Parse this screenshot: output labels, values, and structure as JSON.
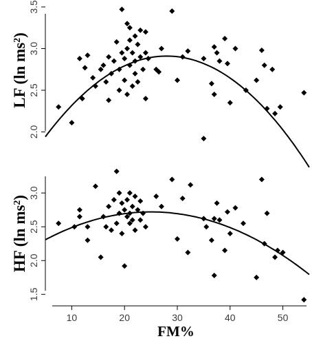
{
  "figure": {
    "xlabel": "FM%"
  },
  "chart_data": [
    {
      "type": "scatter",
      "ylabel": "LF (ln ms²)",
      "ylabel_main": "LF (ln ms",
      "ylabel_sup": "2",
      "ylabel_close": ")",
      "xlim": [
        5,
        55
      ],
      "ylim": [
        1.88,
        3.55
      ],
      "yticks": [
        2.0,
        2.5,
        3.0,
        3.5
      ],
      "ytick_labels": [
        "2.0",
        "2.5",
        "3.0",
        "3.5"
      ],
      "grid": false,
      "fit": {
        "type": "quadratic",
        "peak_x": 28,
        "peak_y": 2.91,
        "a": -0.00183
      },
      "points": [
        {
          "x": 7.5,
          "y": 2.3
        },
        {
          "x": 10,
          "y": 2.11
        },
        {
          "x": 11.5,
          "y": 2.88
        },
        {
          "x": 12,
          "y": 2.4
        },
        {
          "x": 12.5,
          "y": 2.77
        },
        {
          "x": 13,
          "y": 2.92
        },
        {
          "x": 14,
          "y": 2.65
        },
        {
          "x": 14.5,
          "y": 2.55
        },
        {
          "x": 15.5,
          "y": 2.75
        },
        {
          "x": 16,
          "y": 2.8
        },
        {
          "x": 16.5,
          "y": 2.6
        },
        {
          "x": 17,
          "y": 2.38
        },
        {
          "x": 17,
          "y": 2.9
        },
        {
          "x": 17.5,
          "y": 2.7
        },
        {
          "x": 18,
          "y": 2.85
        },
        {
          "x": 18.5,
          "y": 3.08
        },
        {
          "x": 19,
          "y": 2.5
        },
        {
          "x": 19,
          "y": 2.75
        },
        {
          "x": 19.5,
          "y": 2.95
        },
        {
          "x": 19.5,
          "y": 3.47
        },
        {
          "x": 20,
          "y": 2.62
        },
        {
          "x": 20,
          "y": 2.88
        },
        {
          "x": 20.5,
          "y": 2.45
        },
        {
          "x": 20.5,
          "y": 3.3
        },
        {
          "x": 20.5,
          "y": 3.0
        },
        {
          "x": 21,
          "y": 3.25
        },
        {
          "x": 21,
          "y": 3.1
        },
        {
          "x": 21,
          "y": 2.8
        },
        {
          "x": 21.5,
          "y": 2.55
        },
        {
          "x": 21.5,
          "y": 2.95
        },
        {
          "x": 22,
          "y": 3.15
        },
        {
          "x": 22,
          "y": 2.7
        },
        {
          "x": 22,
          "y": 2.85
        },
        {
          "x": 22.5,
          "y": 2.6
        },
        {
          "x": 22.5,
          "y": 3.05
        },
        {
          "x": 23,
          "y": 2.9
        },
        {
          "x": 23,
          "y": 3.22
        },
        {
          "x": 23.5,
          "y": 2.75
        },
        {
          "x": 24,
          "y": 2.95
        },
        {
          "x": 24,
          "y": 3.2
        },
        {
          "x": 24,
          "y": 2.4
        },
        {
          "x": 24.5,
          "y": 2.88
        },
        {
          "x": 26,
          "y": 2.75
        },
        {
          "x": 26.5,
          "y": 2.72
        },
        {
          "x": 27,
          "y": 3.0
        },
        {
          "x": 29,
          "y": 3.45
        },
        {
          "x": 30,
          "y": 2.62
        },
        {
          "x": 31,
          "y": 2.9
        },
        {
          "x": 32,
          "y": 2.97
        },
        {
          "x": 35,
          "y": 2.88
        },
        {
          "x": 35,
          "y": 1.92
        },
        {
          "x": 36.5,
          "y": 2.58
        },
        {
          "x": 37,
          "y": 2.45
        },
        {
          "x": 37,
          "y": 3.02
        },
        {
          "x": 37.5,
          "y": 2.95
        },
        {
          "x": 38,
          "y": 2.85
        },
        {
          "x": 39,
          "y": 3.12
        },
        {
          "x": 39.5,
          "y": 2.82
        },
        {
          "x": 40,
          "y": 2.35
        },
        {
          "x": 41,
          "y": 3.0
        },
        {
          "x": 43,
          "y": 2.5
        },
        {
          "x": 45,
          "y": 2.62
        },
        {
          "x": 46,
          "y": 2.98
        },
        {
          "x": 46.5,
          "y": 2.8
        },
        {
          "x": 47,
          "y": 2.28
        },
        {
          "x": 48,
          "y": 2.75
        },
        {
          "x": 48.5,
          "y": 2.22
        },
        {
          "x": 49.5,
          "y": 2.3
        },
        {
          "x": 54,
          "y": 2.47
        }
      ]
    },
    {
      "type": "scatter",
      "ylabel": "HF (ln ms²)",
      "ylabel_main": "HF (ln ms",
      "ylabel_sup": "2",
      "ylabel_close": ")",
      "xlim": [
        5,
        55
      ],
      "ylim": [
        1.35,
        3.45
      ],
      "yticks": [
        1.5,
        2.0,
        2.5,
        3.0
      ],
      "ytick_labels": [
        "1.5",
        "2.0",
        "2.5",
        "3.0"
      ],
      "grid": false,
      "xticks": [
        10,
        20,
        30,
        40,
        50
      ],
      "xtick_labels": [
        "10",
        "20",
        "30",
        "40",
        "50"
      ],
      "fit": {
        "type": "quadratic",
        "peak_x": 25,
        "peak_y": 2.72,
        "a": -0.00103
      },
      "points": [
        {
          "x": 7.5,
          "y": 2.55
        },
        {
          "x": 10.5,
          "y": 2.5
        },
        {
          "x": 11.5,
          "y": 2.65
        },
        {
          "x": 11.5,
          "y": 2.75
        },
        {
          "x": 13,
          "y": 2.3
        },
        {
          "x": 13,
          "y": 2.5
        },
        {
          "x": 14.5,
          "y": 3.1
        },
        {
          "x": 15.5,
          "y": 2.05
        },
        {
          "x": 16,
          "y": 2.65
        },
        {
          "x": 16.5,
          "y": 2.5
        },
        {
          "x": 17,
          "y": 2.8
        },
        {
          "x": 17.5,
          "y": 2.45
        },
        {
          "x": 18,
          "y": 2.9
        },
        {
          "x": 18.5,
          "y": 3.32
        },
        {
          "x": 18.5,
          "y": 2.55
        },
        {
          "x": 19,
          "y": 2.7
        },
        {
          "x": 19,
          "y": 3.0
        },
        {
          "x": 19.5,
          "y": 2.4
        },
        {
          "x": 19.5,
          "y": 2.85
        },
        {
          "x": 20,
          "y": 1.92
        },
        {
          "x": 20,
          "y": 2.75
        },
        {
          "x": 20.5,
          "y": 2.65
        },
        {
          "x": 20.5,
          "y": 2.9
        },
        {
          "x": 21,
          "y": 2.7
        },
        {
          "x": 21,
          "y": 3.0
        },
        {
          "x": 21,
          "y": 2.55
        },
        {
          "x": 21.5,
          "y": 2.8
        },
        {
          "x": 21.5,
          "y": 2.6
        },
        {
          "x": 22,
          "y": 2.95
        },
        {
          "x": 22,
          "y": 2.45
        },
        {
          "x": 22.5,
          "y": 2.75
        },
        {
          "x": 23,
          "y": 2.88
        },
        {
          "x": 23,
          "y": 2.6
        },
        {
          "x": 23.5,
          "y": 2.7
        },
        {
          "x": 24,
          "y": 2.5
        },
        {
          "x": 26,
          "y": 2.95
        },
        {
          "x": 27,
          "y": 2.8
        },
        {
          "x": 29,
          "y": 3.2
        },
        {
          "x": 30,
          "y": 2.32
        },
        {
          "x": 31,
          "y": 2.92
        },
        {
          "x": 32,
          "y": 2.12
        },
        {
          "x": 32.5,
          "y": 3.12
        },
        {
          "x": 35,
          "y": 2.62
        },
        {
          "x": 35.5,
          "y": 2.5
        },
        {
          "x": 36.5,
          "y": 2.3
        },
        {
          "x": 37,
          "y": 1.78
        },
        {
          "x": 37,
          "y": 2.62
        },
        {
          "x": 37.5,
          "y": 2.85
        },
        {
          "x": 38,
          "y": 2.6
        },
        {
          "x": 39,
          "y": 2.15
        },
        {
          "x": 39.5,
          "y": 2.72
        },
        {
          "x": 40,
          "y": 2.4
        },
        {
          "x": 41,
          "y": 2.78
        },
        {
          "x": 42.5,
          "y": 2.55
        },
        {
          "x": 45,
          "y": 1.75
        },
        {
          "x": 46,
          "y": 3.2
        },
        {
          "x": 46.5,
          "y": 2.25
        },
        {
          "x": 47,
          "y": 2.7
        },
        {
          "x": 48.5,
          "y": 2.05
        },
        {
          "x": 49,
          "y": 2.15
        },
        {
          "x": 50,
          "y": 2.12
        },
        {
          "x": 54,
          "y": 1.42
        }
      ]
    }
  ]
}
